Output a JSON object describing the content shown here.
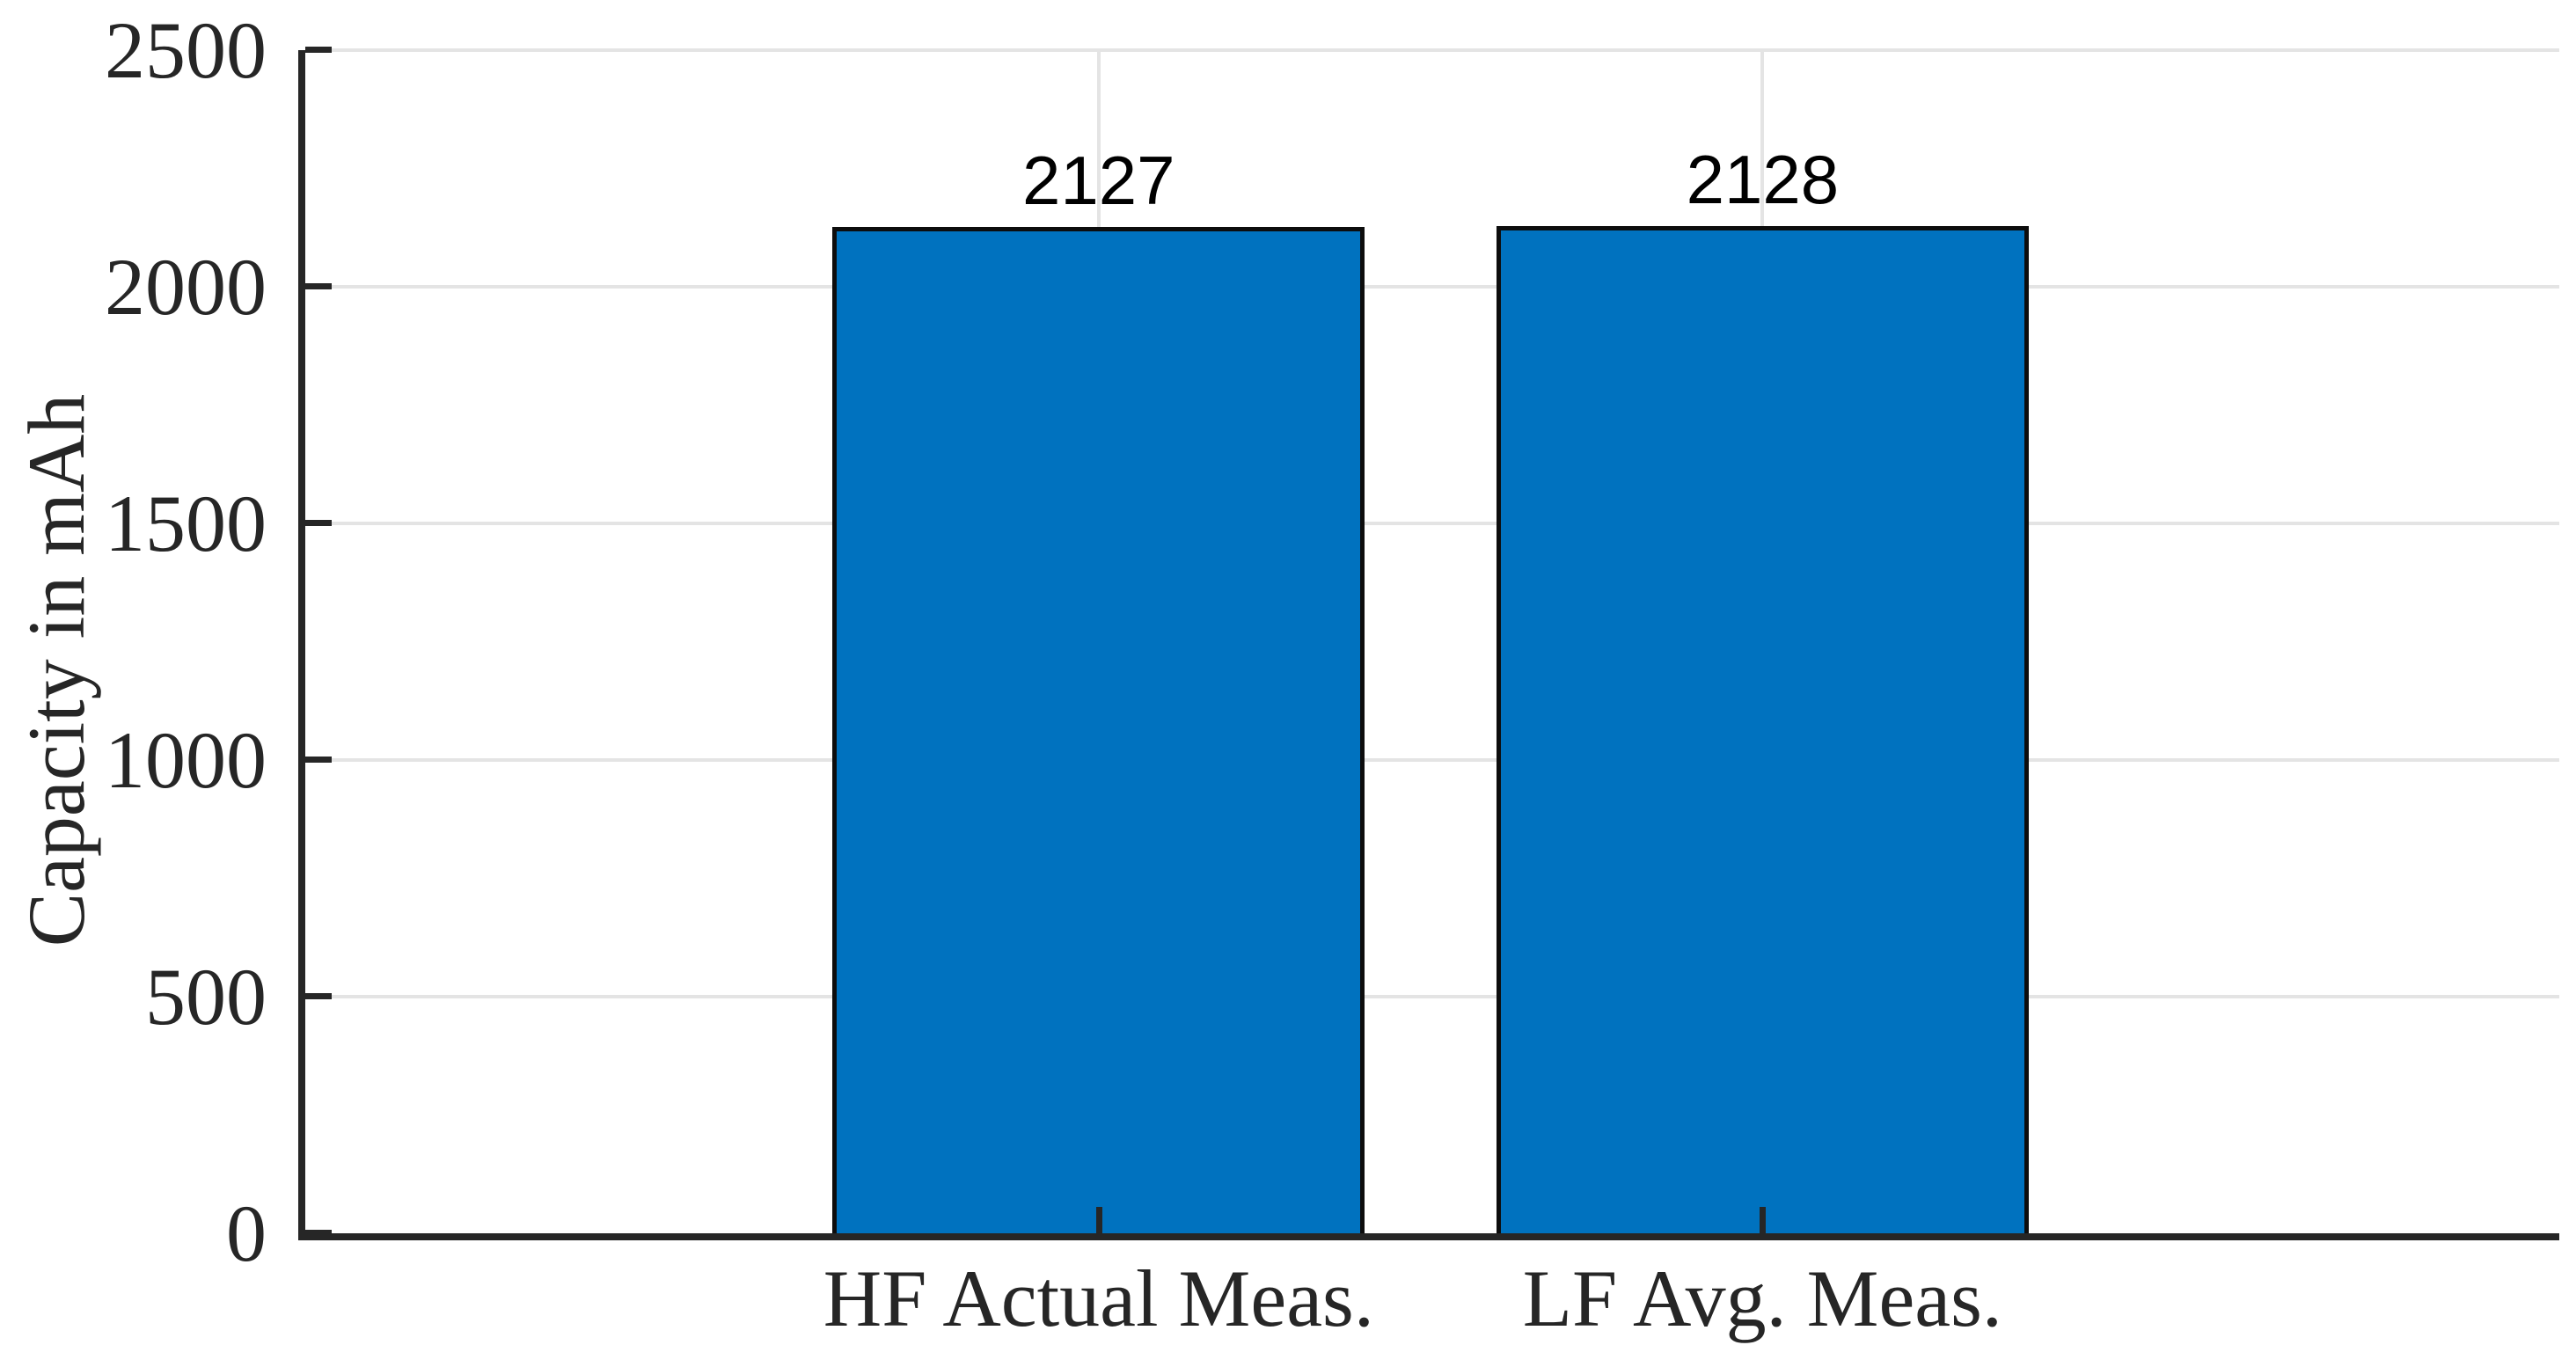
{
  "figure": {
    "background": "#ffffff"
  },
  "chart_data": {
    "type": "bar",
    "title": "",
    "xlabel": "",
    "ylabel": "Capacity in mAh",
    "categories": [
      "HF Actual Meas.",
      "LF Avg. Meas."
    ],
    "values": [
      2127,
      2128
    ],
    "bar_value_labels": [
      "2127",
      "2128"
    ],
    "ylim": [
      0,
      2500
    ],
    "yticks": [
      0,
      500,
      1000,
      1500,
      2000,
      2500
    ],
    "ytick_labels": [
      "0",
      "500",
      "1000",
      "1500",
      "2000",
      "2500"
    ],
    "grid": "on",
    "legend": "none",
    "colors": {
      "bar_fill": "#0072bf",
      "bar_edge": "#0d0d0d",
      "grid": "#e4e4e4",
      "axis": "#262626",
      "tick_label": "#262626",
      "value_label": "#000000"
    }
  }
}
